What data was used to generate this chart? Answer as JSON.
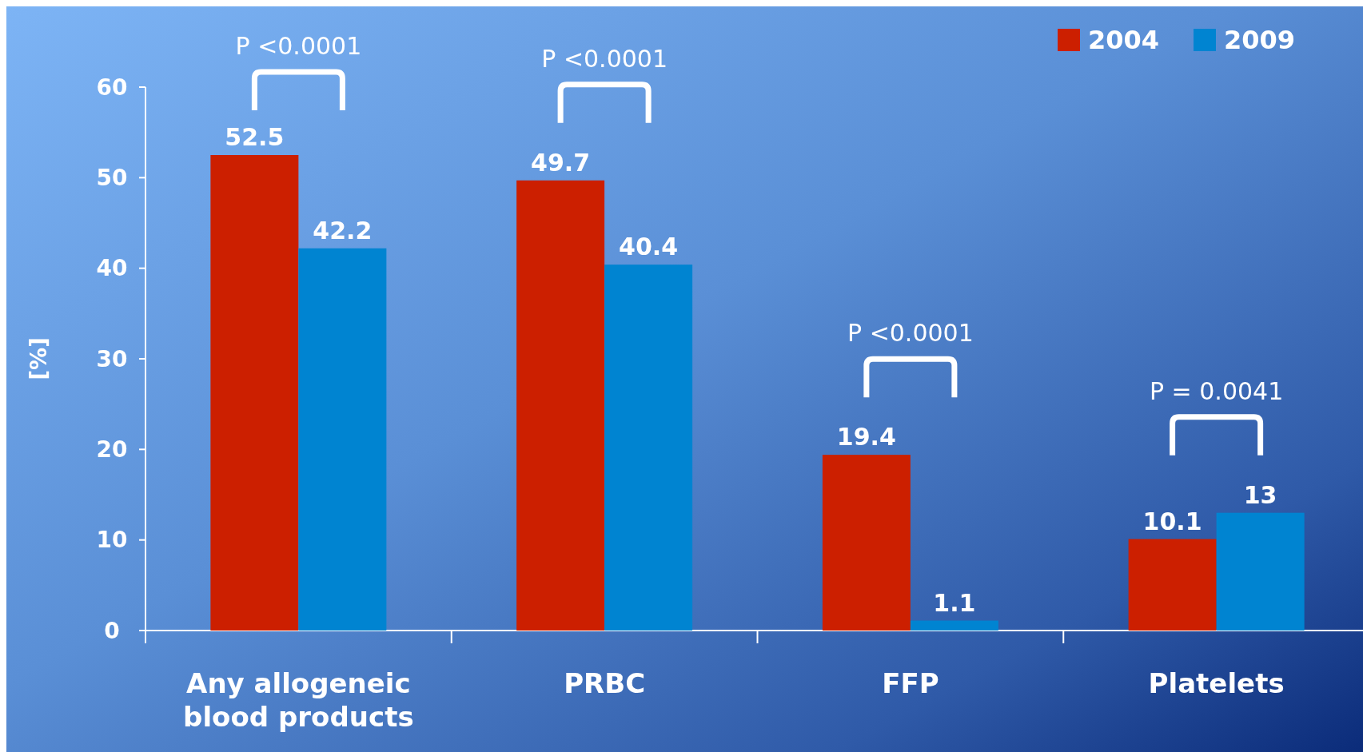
{
  "chart_data": {
    "type": "bar",
    "ylabel": "[%]",
    "categories": [
      "Any allogeneic blood products",
      "PRBC",
      "FFP",
      "Platelets"
    ],
    "series": [
      {
        "name": "2004",
        "color": "#cc1f00",
        "values": [
          52.5,
          49.7,
          19.4,
          10.1
        ]
      },
      {
        "name": "2009",
        "color": "#0084d1",
        "values": [
          42.2,
          40.4,
          1.1,
          13
        ]
      }
    ],
    "ylim": [
      0,
      60
    ],
    "yticks": [
      0,
      10,
      20,
      30,
      40,
      50,
      60
    ],
    "data_labels": true,
    "legend": "top right",
    "grid": false,
    "annotations": [
      "P <0.0001",
      "P <0.0001",
      "P <0.0001",
      "P = 0.0041"
    ]
  }
}
